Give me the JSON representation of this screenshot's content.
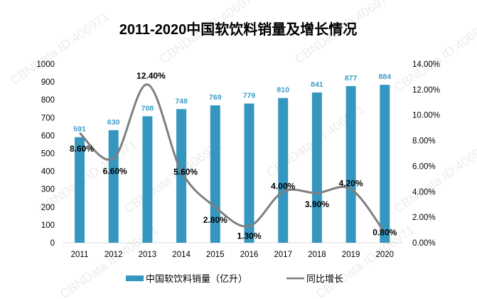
{
  "chart_data": {
    "type": "bar+line",
    "title": "2011-2020中国软饮料销量及增长情况",
    "categories": [
      "2011",
      "2012",
      "2013",
      "2014",
      "2015",
      "2016",
      "2017",
      "2018",
      "2019",
      "2020"
    ],
    "series": [
      {
        "name": "中国软饮料销量（亿升）",
        "type": "bar",
        "axis": "left",
        "color": "#3597bf",
        "values": [
          591,
          630,
          708,
          748,
          769,
          779,
          810,
          841,
          877,
          884
        ]
      },
      {
        "name": "同比增长",
        "type": "line",
        "axis": "right",
        "color": "#7f7f7f",
        "values": [
          8.6,
          6.6,
          12.4,
          5.6,
          2.8,
          1.3,
          4.0,
          3.9,
          4.2,
          0.8
        ],
        "labels": [
          "8.60%",
          "6.60%",
          "12.40%",
          "5.60%",
          "2.80%",
          "1.30%",
          "4.00%",
          "3.90%",
          "4.20%",
          "0.80%"
        ]
      }
    ],
    "y_left": {
      "min": 0,
      "max": 1000,
      "ticks": [
        "0",
        "100",
        "200",
        "300",
        "400",
        "500",
        "600",
        "700",
        "800",
        "900",
        "1000"
      ]
    },
    "y_right": {
      "min": 0,
      "max": 14,
      "ticks": [
        "0.00%",
        "2.00%",
        "4.00%",
        "6.00%",
        "8.00%",
        "10.00%",
        "12.00%",
        "14.00%"
      ]
    },
    "grid": false,
    "legend": "bottom",
    "bar_label_color": "#3a9bc8"
  },
  "watermark": "CBNData ID:406971"
}
